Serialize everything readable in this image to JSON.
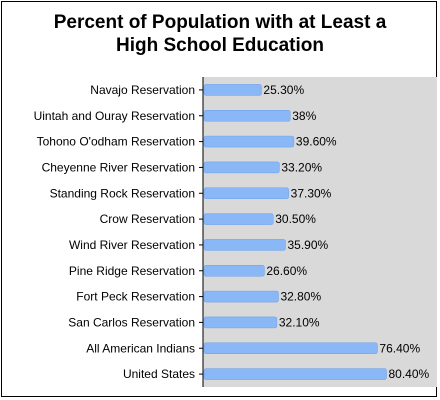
{
  "chart_data": {
    "type": "bar",
    "orientation": "horizontal",
    "title_lines": [
      "Percent of Population with at Least a",
      "High School Education"
    ],
    "categories": [
      "Navajo Reservation",
      "Uintah and Ouray Reservation",
      "Tohono O'odham Reservation",
      "Cheyenne River Reservation",
      "Standing Rock Reservation",
      "Crow Reservation",
      "Wind River Reservation",
      "Pine Ridge Reservation",
      "Fort Peck Reservation",
      "San Carlos Reservation",
      "All American Indians",
      "United States"
    ],
    "values": [
      25.3,
      38,
      39.6,
      33.2,
      37.3,
      30.5,
      35.9,
      26.6,
      32.8,
      32.1,
      76.4,
      80.4
    ],
    "value_labels": [
      "25.30%",
      "38%",
      "39.60%",
      "33.20%",
      "37.30%",
      "30.50%",
      "35.90%",
      "26.60%",
      "32.80%",
      "32.10%",
      "76.40%",
      "80.40%"
    ],
    "xlim": [
      0,
      85
    ],
    "grid": false,
    "legend": "none",
    "colors": {
      "bar": "#8ab8f6",
      "bar_edge": "#6d9ee8",
      "plot_bg": "#d9d9d9",
      "axis": "#000000"
    }
  }
}
